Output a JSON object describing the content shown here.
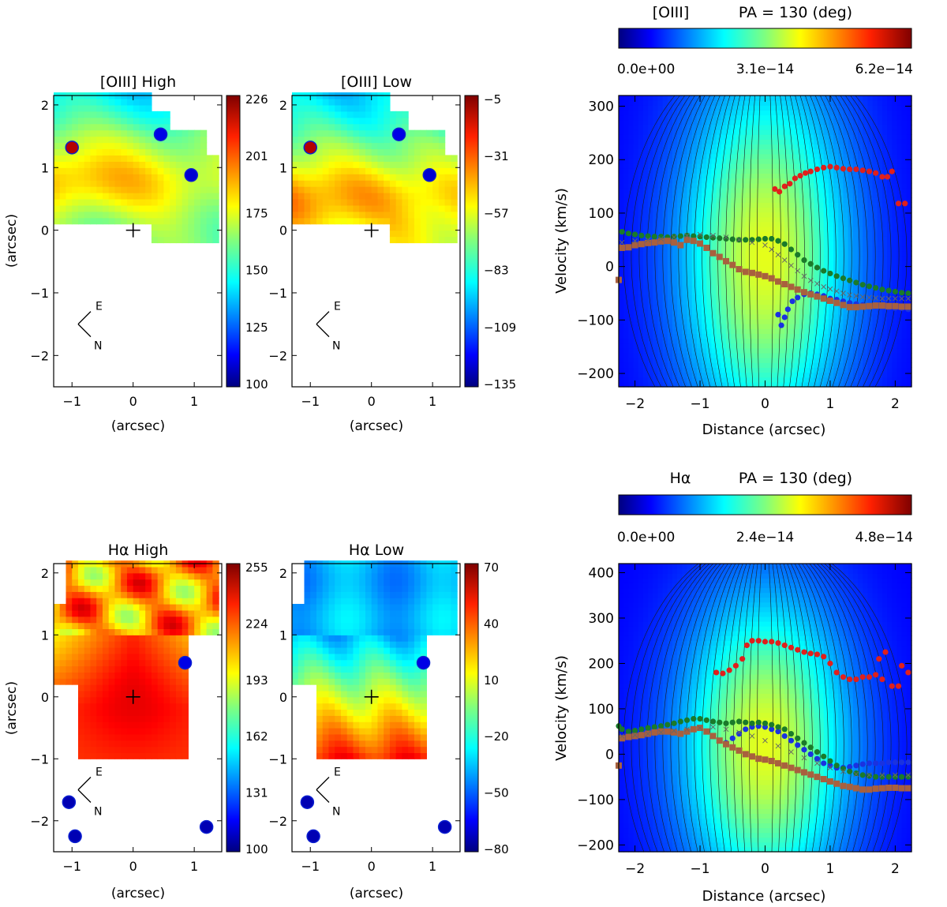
{
  "colors": {
    "jet": [
      "#00007f",
      "#0000ff",
      "#007fff",
      "#00ffff",
      "#7fff7f",
      "#ffff00",
      "#ff7f00",
      "#ff0000",
      "#7f0000"
    ],
    "red_points": "#e0201c",
    "blue_points": "#1a32e0",
    "green_points": "#1a7a2a",
    "brown_points": "#a8603e",
    "cross_points": "#666666"
  },
  "chart_data": [
    {
      "id": "oiii-high",
      "type": "heatmap",
      "title": "[OIII] High",
      "xlabel": "(arcsec)",
      "ylabel": "(arcsec)",
      "xlim": [
        -1.3,
        1.45
      ],
      "ylim": [
        -2.5,
        2.15
      ],
      "xticks": [
        -1,
        0,
        1
      ],
      "yticks": [
        -2,
        -1,
        0,
        1,
        2
      ],
      "colorbar_ticks": [
        "226",
        "201",
        "175",
        "150",
        "125",
        "100"
      ],
      "field": "oiii",
      "mask": "oiii",
      "compass": [
        "E",
        "N"
      ]
    },
    {
      "id": "oiii-low",
      "type": "heatmap",
      "title": "[OIII] Low",
      "xlabel": "(arcsec)",
      "xlim": [
        -1.3,
        1.45
      ],
      "ylim": [
        -2.5,
        2.15
      ],
      "xticks": [
        -1,
        0,
        1
      ],
      "yticks": [
        -2,
        -1,
        0,
        1,
        2
      ],
      "colorbar_ticks": [
        "-5",
        "-31",
        "-57",
        "-83",
        "-109",
        "-135"
      ],
      "field": "oiii_low",
      "mask": "oiii",
      "compass": [
        "E",
        "N"
      ]
    },
    {
      "id": "ha-high",
      "type": "heatmap",
      "title": "Hα High",
      "xlabel": "(arcsec)",
      "ylabel": "(arcsec)",
      "xlim": [
        -1.3,
        1.45
      ],
      "ylim": [
        -2.5,
        2.15
      ],
      "xticks": [
        -1,
        0,
        1
      ],
      "yticks": [
        -2,
        -1,
        0,
        1,
        2
      ],
      "colorbar_ticks": [
        "255",
        "224",
        "193",
        "162",
        "131",
        "100"
      ],
      "field": "ha_high",
      "mask": "ha",
      "compass": [
        "E",
        "N"
      ]
    },
    {
      "id": "ha-low",
      "type": "heatmap",
      "title": "Hα Low",
      "xlabel": "(arcsec)",
      "xlim": [
        -1.3,
        1.45
      ],
      "ylim": [
        -2.5,
        2.15
      ],
      "xticks": [
        -1,
        0,
        1
      ],
      "yticks": [
        -2,
        -1,
        0,
        1,
        2
      ],
      "colorbar_ticks": [
        "70",
        "40",
        "10",
        "-20",
        "-50",
        "-80"
      ],
      "field": "ha_low",
      "mask": "ha",
      "compass": [
        "E",
        "N"
      ]
    },
    {
      "id": "pv-oiii",
      "type": "heatmap",
      "title_line": "[OIII]",
      "pa_label": "PA = 130 (deg)",
      "colorbar_ticks": [
        "0.0e+00",
        "3.1e−14",
        "6.2e−14"
      ],
      "xlabel": "Distance (arcsec)",
      "ylabel": "Velocity (km/s)",
      "xlim": [
        -2.25,
        2.25
      ],
      "ylim": [
        -225,
        320
      ],
      "xticks": [
        -2,
        -1,
        0,
        1,
        2
      ],
      "yticks": [
        -200,
        -100,
        0,
        100,
        200,
        300
      ],
      "series": [
        {
          "name": "red",
          "x": [
            0.15,
            0.22,
            0.3,
            0.38,
            0.46,
            0.54,
            0.62,
            0.7,
            0.8,
            0.9,
            1.0,
            1.1,
            1.2,
            1.3,
            1.4,
            1.5,
            1.6,
            1.7,
            1.8,
            1.88,
            1.95,
            2.05,
            2.15
          ],
          "y": [
            145,
            140,
            150,
            155,
            165,
            170,
            175,
            178,
            182,
            185,
            187,
            185,
            183,
            182,
            182,
            180,
            178,
            175,
            168,
            168,
            178,
            118,
            118
          ]
        },
        {
          "name": "blue",
          "x": [
            0.2,
            0.25,
            0.3,
            0.35,
            0.42,
            0.5,
            0.6,
            0.7,
            0.8,
            0.9,
            1.0,
            1.1,
            1.2,
            1.3,
            1.4,
            1.5,
            1.6,
            1.7,
            1.8,
            1.9,
            2.0,
            2.1,
            2.2
          ],
          "y": [
            -90,
            -110,
            -95,
            -80,
            -65,
            -58,
            -52,
            -50,
            -52,
            -55,
            -60,
            -62,
            -65,
            -68,
            -70,
            -72,
            -74,
            -75,
            -76,
            -77,
            -78,
            -78,
            -80
          ]
        },
        {
          "name": "green",
          "x": [
            -2.2,
            -2.1,
            -2.0,
            -1.9,
            -1.8,
            -1.7,
            -1.6,
            -1.5,
            -1.4,
            -1.3,
            -1.2,
            -1.1,
            -1.0,
            -0.9,
            -0.8,
            -0.7,
            -0.6,
            -0.5,
            -0.4,
            -0.3,
            -0.2,
            -0.1,
            0.0,
            0.1,
            0.2,
            0.3,
            0.4,
            0.5,
            0.6,
            0.7,
            0.8,
            0.9,
            1.0,
            1.1,
            1.2,
            1.3,
            1.4,
            1.5,
            1.6,
            1.7,
            1.8,
            1.9,
            2.0,
            2.1,
            2.2
          ],
          "y": [
            65,
            62,
            60,
            58,
            57,
            56,
            56,
            55,
            56,
            57,
            58,
            57,
            56,
            55,
            54,
            53,
            52,
            51,
            50,
            50,
            50,
            51,
            52,
            52,
            48,
            42,
            32,
            22,
            12,
            5,
            -2,
            -8,
            -13,
            -18,
            -22,
            -26,
            -30,
            -34,
            -37,
            -40,
            -43,
            -45,
            -47,
            -49,
            -50
          ]
        },
        {
          "name": "brown",
          "x": [
            -2.25,
            -2.2,
            -2.1,
            -2.0,
            -1.9,
            -1.8,
            -1.7,
            -1.6,
            -1.5,
            -1.4,
            -1.3,
            -1.2,
            -1.1,
            -1.0,
            -0.9,
            -0.8,
            -0.7,
            -0.6,
            -0.5,
            -0.4,
            -0.3,
            -0.2,
            -0.1,
            0.0,
            0.1,
            0.2,
            0.3,
            0.4,
            0.5,
            0.6,
            0.7,
            0.8,
            0.9,
            1.0,
            1.1,
            1.2,
            1.3,
            1.4,
            1.5,
            1.6,
            1.7,
            1.8,
            1.9,
            2.0,
            2.1,
            2.2
          ],
          "y": [
            -25,
            35,
            36,
            40,
            42,
            44,
            45,
            47,
            48,
            45,
            40,
            50,
            48,
            43,
            35,
            25,
            18,
            10,
            3,
            -5,
            -10,
            -12,
            -15,
            -18,
            -22,
            -28,
            -33,
            -38,
            -43,
            -48,
            -52,
            -56,
            -60,
            -64,
            -68,
            -72,
            -76,
            -76,
            -75,
            -74,
            -73,
            -73,
            -74,
            -74,
            -75,
            -75
          ]
        },
        {
          "name": "cross",
          "x": [
            -2.2,
            -2.0,
            -1.8,
            -1.6,
            -1.4,
            -1.2,
            -1.0,
            -0.8,
            -0.6,
            -0.4,
            -0.2,
            0.0,
            0.1,
            0.2,
            0.3,
            0.4,
            0.5,
            0.6,
            0.7,
            0.8,
            0.9,
            1.0,
            1.1,
            1.2,
            1.3,
            1.4,
            1.5,
            1.6,
            1.7,
            1.8,
            1.9,
            2.0,
            2.1,
            2.2
          ],
          "y": [
            45,
            48,
            50,
            52,
            55,
            58,
            60,
            58,
            55,
            50,
            45,
            40,
            32,
            22,
            12,
            2,
            -8,
            -18,
            -26,
            -32,
            -38,
            -42,
            -46,
            -50,
            -53,
            -55,
            -57,
            -58,
            -59,
            -60,
            -60,
            -60,
            -60,
            -60
          ]
        }
      ]
    },
    {
      "id": "pv-ha",
      "type": "heatmap",
      "title_line": "Hα",
      "pa_label": "PA = 130 (deg)",
      "colorbar_ticks": [
        "0.0e+00",
        "2.4e−14",
        "4.8e−14"
      ],
      "xlabel": "Distance (arcsec)",
      "ylabel": "Velocity (km/s)",
      "xlim": [
        -2.25,
        2.25
      ],
      "ylim": [
        -215,
        420
      ],
      "xticks": [
        -2,
        -1,
        0,
        1,
        2
      ],
      "yticks": [
        -200,
        -100,
        0,
        100,
        200,
        300,
        400
      ],
      "series": [
        {
          "name": "red",
          "x": [
            -0.75,
            -0.65,
            -0.55,
            -0.45,
            -0.35,
            -0.28,
            -0.2,
            -0.1,
            0.0,
            0.1,
            0.2,
            0.3,
            0.4,
            0.5,
            0.6,
            0.7,
            0.8,
            0.9,
            1.0,
            1.1,
            1.2,
            1.3,
            1.4,
            1.5,
            1.6,
            1.7,
            1.75,
            1.8,
            1.85,
            1.95,
            2.05,
            2.1,
            2.2
          ],
          "y": [
            180,
            178,
            185,
            195,
            210,
            240,
            250,
            250,
            248,
            248,
            245,
            240,
            235,
            230,
            225,
            222,
            220,
            215,
            200,
            180,
            170,
            165,
            165,
            170,
            170,
            175,
            210,
            165,
            225,
            150,
            150,
            195,
            180
          ]
        },
        {
          "name": "blue",
          "x": [
            -0.7,
            -0.6,
            -0.5,
            -0.4,
            -0.3,
            -0.2,
            -0.1,
            0.0,
            0.1,
            0.2,
            0.3,
            0.4,
            0.5,
            0.6,
            0.7,
            0.8,
            0.9,
            1.0,
            1.1,
            1.2,
            1.3,
            1.4,
            1.5,
            1.6,
            1.7,
            1.8,
            1.9,
            2.0,
            2.1,
            2.2
          ],
          "y": [
            30,
            25,
            35,
            45,
            55,
            60,
            62,
            60,
            55,
            50,
            40,
            30,
            20,
            10,
            0,
            -10,
            -20,
            -25,
            -30,
            -30,
            -28,
            -25,
            -22,
            -20,
            -20,
            -20,
            -18,
            -18,
            -18,
            -18
          ]
        },
        {
          "name": "green",
          "x": [
            -2.25,
            -2.2,
            -2.1,
            -2.0,
            -1.9,
            -1.8,
            -1.7,
            -1.6,
            -1.5,
            -1.4,
            -1.3,
            -1.2,
            -1.1,
            -1.0,
            -0.9,
            -0.8,
            -0.7,
            -0.6,
            -0.5,
            -0.4,
            -0.3,
            -0.2,
            -0.1,
            0.0,
            0.1,
            0.2,
            0.3,
            0.4,
            0.5,
            0.6,
            0.7,
            0.8,
            0.9,
            1.0,
            1.1,
            1.2,
            1.3,
            1.4,
            1.5,
            1.6,
            1.7,
            1.8,
            1.9,
            2.0,
            2.1,
            2.2
          ],
          "y": [
            62,
            55,
            50,
            52,
            55,
            58,
            60,
            62,
            65,
            68,
            72,
            75,
            78,
            78,
            75,
            72,
            70,
            68,
            70,
            72,
            70,
            68,
            70,
            68,
            65,
            60,
            55,
            45,
            35,
            25,
            15,
            5,
            -5,
            -15,
            -25,
            -32,
            -38,
            -42,
            -46,
            -48,
            -50,
            -50,
            -50,
            -50,
            -50,
            -50
          ]
        },
        {
          "name": "brown",
          "x": [
            -2.25,
            -2.2,
            -2.1,
            -2.0,
            -1.9,
            -1.8,
            -1.7,
            -1.6,
            -1.5,
            -1.4,
            -1.3,
            -1.2,
            -1.1,
            -1.0,
            -0.9,
            -0.8,
            -0.7,
            -0.6,
            -0.5,
            -0.4,
            -0.3,
            -0.2,
            -0.1,
            0.0,
            0.1,
            0.2,
            0.3,
            0.4,
            0.5,
            0.6,
            0.7,
            0.8,
            0.9,
            1.0,
            1.1,
            1.2,
            1.3,
            1.4,
            1.5,
            1.6,
            1.7,
            1.8,
            1.9,
            2.0,
            2.1,
            2.2
          ],
          "y": [
            -25,
            35,
            38,
            40,
            42,
            45,
            48,
            50,
            50,
            48,
            45,
            50,
            55,
            58,
            50,
            40,
            30,
            22,
            15,
            8,
            0,
            -5,
            -10,
            -12,
            -15,
            -20,
            -25,
            -30,
            -35,
            -40,
            -45,
            -50,
            -55,
            -60,
            -65,
            -70,
            -72,
            -75,
            -78,
            -78,
            -76,
            -75,
            -74,
            -74,
            -75,
            -75
          ]
        },
        {
          "name": "cross",
          "x": [
            -2.2,
            -2.0,
            -1.8,
            -1.6,
            -1.4,
            -1.2,
            -1.0,
            -0.8,
            -0.6,
            -0.4,
            -0.2,
            0.0,
            0.2,
            0.4,
            0.6,
            0.8,
            1.0,
            1.2,
            1.4,
            1.6,
            1.8,
            2.0,
            2.2
          ],
          "y": [
            40,
            42,
            45,
            48,
            52,
            55,
            58,
            60,
            55,
            48,
            40,
            30,
            18,
            5,
            -8,
            -20,
            -30,
            -38,
            -44,
            -46,
            -46,
            -46,
            -46
          ]
        }
      ]
    }
  ]
}
